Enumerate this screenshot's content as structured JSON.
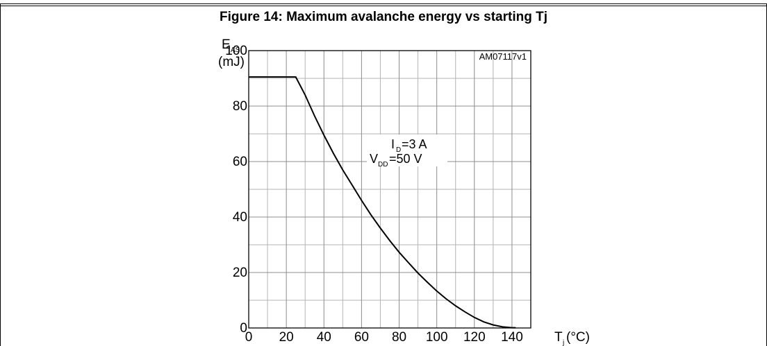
{
  "figure": {
    "title": "Figure 14: Maximum avalanche energy vs starting Tj",
    "doc_code": "AM07117v1"
  },
  "chart_data": {
    "type": "line",
    "title": "Figure 14: Maximum avalanche energy vs starting Tj",
    "ylabel": {
      "symbol": "E",
      "subscript": "AS",
      "unit": "(mJ)"
    },
    "xlabel": {
      "symbol": "T",
      "subscript": "j",
      "unit": "(°C)"
    },
    "xlim": [
      0,
      150
    ],
    "ylim": [
      0,
      100
    ],
    "x_ticks": [
      0,
      20,
      40,
      60,
      80,
      100,
      120,
      140
    ],
    "y_ticks": [
      0,
      20,
      40,
      60,
      80,
      100
    ],
    "grid": true,
    "annotation": {
      "line1": {
        "symbol": "I",
        "subscript": "D",
        "text": "=3 A"
      },
      "line2": {
        "symbol": "V",
        "subscript": "DD",
        "text": "=50 V"
      }
    },
    "series": [
      {
        "color": "#000000",
        "x": [
          0,
          25,
          30,
          35,
          40,
          45,
          50,
          55,
          60,
          65,
          70,
          75,
          80,
          85,
          90,
          95,
          100,
          105,
          110,
          115,
          120,
          125,
          130,
          135,
          140,
          142
        ],
        "y": [
          90.5,
          90.5,
          84,
          76.5,
          69.5,
          63,
          57,
          51.5,
          46,
          40.8,
          36,
          31.5,
          27.3,
          23.5,
          19.8,
          16.5,
          13.3,
          10.5,
          8,
          5.8,
          3.8,
          2.2,
          1.1,
          0.4,
          0.1,
          0.1
        ]
      }
    ]
  }
}
